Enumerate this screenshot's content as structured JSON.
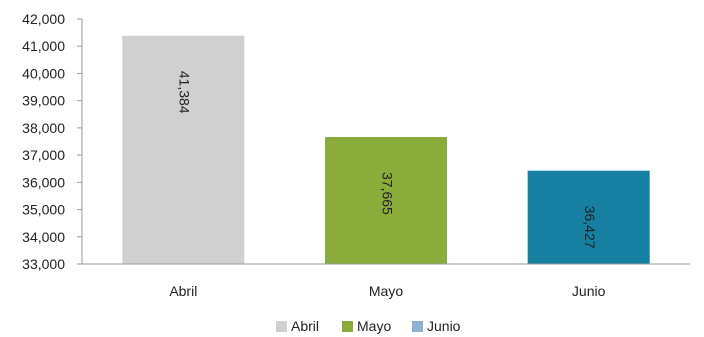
{
  "chart_data": {
    "type": "bar",
    "categories": [
      "Abril",
      "Mayo",
      "Junio"
    ],
    "values": [
      41384,
      37665,
      36427
    ],
    "data_labels": [
      "41,384",
      "37,665",
      "36,427"
    ],
    "bar_colors": [
      "#d0d0d0",
      "#8aac3a",
      "#177fa2"
    ],
    "legend": [
      {
        "label": "Abril",
        "color": "#d0d0d0"
      },
      {
        "label": "Mayo",
        "color": "#8aac3a"
      },
      {
        "label": "Junio",
        "color": "#8eb1d1"
      }
    ],
    "y_ticks": [
      "33,000",
      "34,000",
      "35,000",
      "36,000",
      "37,000",
      "38,000",
      "39,000",
      "40,000",
      "41,000",
      "42,000"
    ],
    "ylim": [
      33000,
      42000
    ],
    "y_tick_step": 1000,
    "grid": false,
    "legend_position": "bottom",
    "title": "",
    "xlabel": "",
    "ylabel": ""
  }
}
